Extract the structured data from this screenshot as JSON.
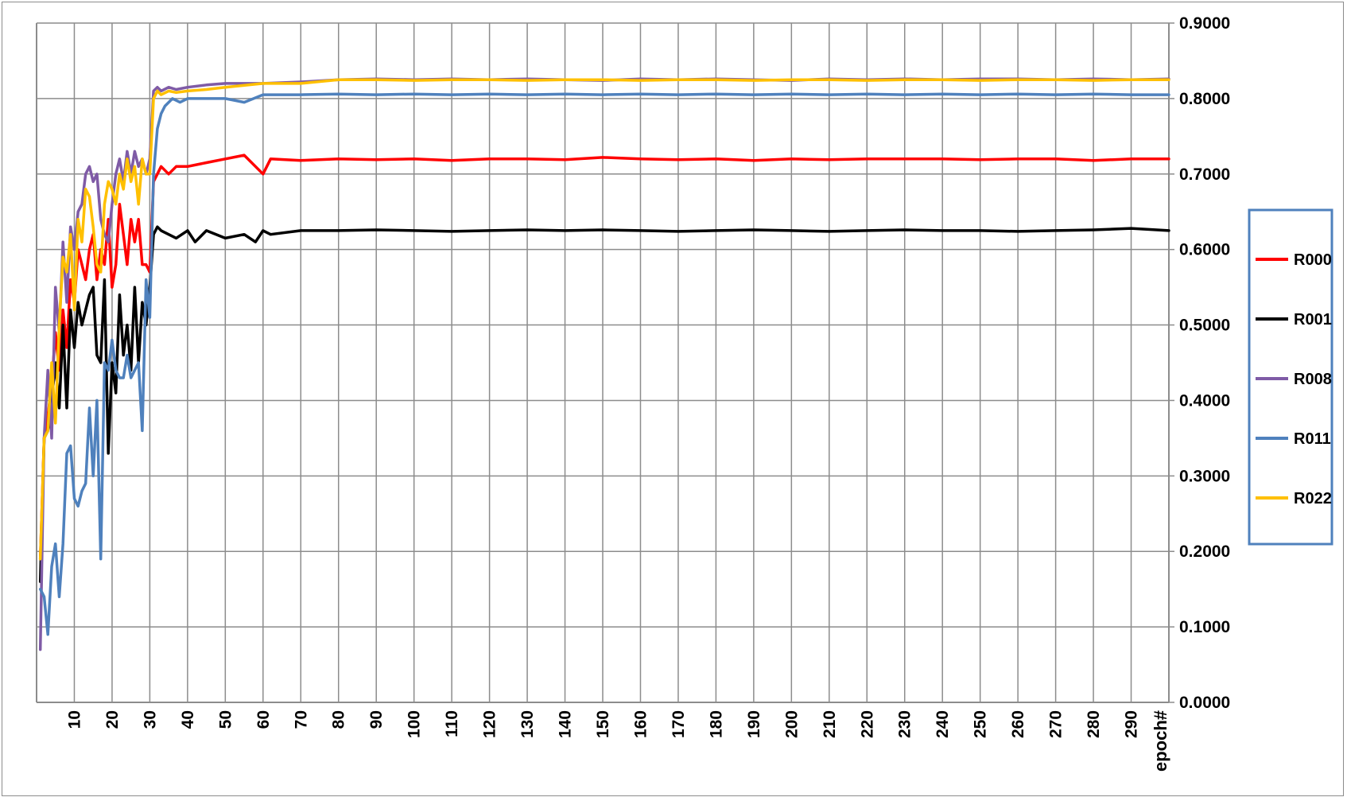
{
  "chart_data": {
    "type": "line",
    "title": "",
    "xlabel": "epoch#",
    "ylabel": "",
    "xlim": [
      0,
      300
    ],
    "ylim": [
      0.0,
      0.9
    ],
    "y_tick_labels": [
      "0.0000",
      "0.1000",
      "0.2000",
      "0.3000",
      "0.4000",
      "0.5000",
      "0.6000",
      "0.7000",
      "0.8000",
      "0.9000"
    ],
    "x_tick_labels": [
      "10",
      "20",
      "30",
      "40",
      "50",
      "60",
      "70",
      "80",
      "90",
      "100",
      "110",
      "120",
      "130",
      "140",
      "150",
      "160",
      "170",
      "180",
      "190",
      "200",
      "210",
      "220",
      "230",
      "240",
      "250",
      "260",
      "270",
      "280",
      "290"
    ],
    "y_axis_position": "right",
    "grid": true,
    "legend_position": "right",
    "series": [
      {
        "name": "R000",
        "color": "#ff0000",
        "x": [
          1,
          2,
          3,
          4,
          5,
          6,
          7,
          8,
          9,
          10,
          11,
          12,
          13,
          14,
          15,
          16,
          17,
          18,
          19,
          20,
          21,
          22,
          23,
          24,
          25,
          26,
          27,
          28,
          29,
          30,
          31,
          32,
          33,
          35,
          37,
          40,
          45,
          50,
          55,
          58,
          60,
          62,
          70,
          80,
          90,
          100,
          110,
          120,
          130,
          140,
          150,
          160,
          170,
          180,
          190,
          200,
          210,
          220,
          230,
          240,
          250,
          260,
          270,
          280,
          290,
          300
        ],
        "y": [
          0.19,
          0.35,
          0.38,
          0.42,
          0.49,
          0.44,
          0.52,
          0.47,
          0.56,
          0.53,
          0.6,
          0.58,
          0.56,
          0.6,
          0.62,
          0.56,
          0.6,
          0.58,
          0.64,
          0.55,
          0.58,
          0.66,
          0.62,
          0.58,
          0.64,
          0.61,
          0.64,
          0.58,
          0.58,
          0.57,
          0.69,
          0.7,
          0.71,
          0.7,
          0.71,
          0.71,
          0.715,
          0.72,
          0.725,
          0.71,
          0.7,
          0.72,
          0.718,
          0.72,
          0.719,
          0.72,
          0.718,
          0.72,
          0.72,
          0.719,
          0.722,
          0.72,
          0.719,
          0.72,
          0.718,
          0.72,
          0.719,
          0.72,
          0.72,
          0.72,
          0.719,
          0.72,
          0.72,
          0.718,
          0.72,
          0.72
        ]
      },
      {
        "name": "R001",
        "color": "#000000",
        "x": [
          1,
          2,
          3,
          4,
          5,
          6,
          7,
          8,
          9,
          10,
          11,
          12,
          13,
          14,
          15,
          16,
          17,
          18,
          19,
          20,
          21,
          22,
          23,
          24,
          25,
          26,
          27,
          28,
          29,
          30,
          31,
          32,
          33,
          35,
          37,
          40,
          42,
          45,
          50,
          55,
          58,
          60,
          62,
          70,
          80,
          90,
          100,
          110,
          120,
          130,
          140,
          150,
          160,
          170,
          180,
          190,
          200,
          210,
          220,
          230,
          240,
          250,
          260,
          270,
          280,
          290,
          300
        ],
        "y": [
          0.16,
          0.35,
          0.36,
          0.4,
          0.45,
          0.39,
          0.5,
          0.39,
          0.52,
          0.47,
          0.53,
          0.5,
          0.52,
          0.54,
          0.55,
          0.46,
          0.45,
          0.56,
          0.33,
          0.45,
          0.41,
          0.54,
          0.46,
          0.5,
          0.44,
          0.55,
          0.45,
          0.53,
          0.5,
          0.55,
          0.62,
          0.63,
          0.625,
          0.62,
          0.615,
          0.625,
          0.61,
          0.625,
          0.615,
          0.62,
          0.61,
          0.625,
          0.62,
          0.625,
          0.625,
          0.626,
          0.625,
          0.624,
          0.625,
          0.626,
          0.625,
          0.626,
          0.625,
          0.624,
          0.625,
          0.626,
          0.625,
          0.624,
          0.625,
          0.626,
          0.625,
          0.625,
          0.624,
          0.625,
          0.626,
          0.628,
          0.625
        ]
      },
      {
        "name": "R008",
        "color": "#7f5ba6",
        "x": [
          1,
          2,
          3,
          4,
          5,
          6,
          7,
          8,
          9,
          10,
          11,
          12,
          13,
          14,
          15,
          16,
          17,
          18,
          19,
          20,
          21,
          22,
          23,
          24,
          25,
          26,
          27,
          28,
          29,
          30,
          31,
          32,
          33,
          35,
          37,
          40,
          45,
          50,
          60,
          70,
          80,
          90,
          100,
          110,
          120,
          130,
          140,
          150,
          160,
          170,
          180,
          190,
          200,
          210,
          220,
          230,
          240,
          250,
          260,
          270,
          280,
          290,
          300
        ],
        "y": [
          0.07,
          0.35,
          0.44,
          0.35,
          0.55,
          0.49,
          0.61,
          0.53,
          0.63,
          0.6,
          0.65,
          0.66,
          0.7,
          0.71,
          0.69,
          0.7,
          0.64,
          0.62,
          0.61,
          0.66,
          0.7,
          0.72,
          0.69,
          0.73,
          0.7,
          0.73,
          0.71,
          0.72,
          0.7,
          0.72,
          0.81,
          0.815,
          0.81,
          0.815,
          0.812,
          0.815,
          0.818,
          0.82,
          0.82,
          0.822,
          0.825,
          0.826,
          0.825,
          0.826,
          0.825,
          0.826,
          0.825,
          0.824,
          0.826,
          0.825,
          0.826,
          0.825,
          0.824,
          0.826,
          0.825,
          0.826,
          0.825,
          0.826,
          0.826,
          0.825,
          0.826,
          0.825,
          0.826
        ]
      },
      {
        "name": "R011",
        "color": "#4f81bd",
        "x": [
          1,
          2,
          3,
          4,
          5,
          6,
          7,
          8,
          9,
          10,
          11,
          12,
          13,
          14,
          15,
          16,
          17,
          18,
          19,
          20,
          21,
          22,
          23,
          24,
          25,
          26,
          27,
          28,
          29,
          30,
          31,
          32,
          33,
          34,
          36,
          38,
          40,
          45,
          50,
          55,
          60,
          70,
          80,
          90,
          100,
          110,
          120,
          130,
          140,
          150,
          160,
          170,
          180,
          190,
          200,
          210,
          220,
          230,
          240,
          250,
          260,
          270,
          280,
          290,
          300
        ],
        "y": [
          0.15,
          0.14,
          0.09,
          0.18,
          0.21,
          0.14,
          0.21,
          0.33,
          0.34,
          0.27,
          0.26,
          0.28,
          0.29,
          0.39,
          0.3,
          0.4,
          0.19,
          0.45,
          0.44,
          0.48,
          0.44,
          0.43,
          0.43,
          0.46,
          0.43,
          0.44,
          0.45,
          0.36,
          0.56,
          0.51,
          0.7,
          0.76,
          0.78,
          0.79,
          0.8,
          0.795,
          0.8,
          0.8,
          0.8,
          0.795,
          0.805,
          0.805,
          0.806,
          0.805,
          0.806,
          0.805,
          0.806,
          0.805,
          0.806,
          0.805,
          0.806,
          0.805,
          0.806,
          0.805,
          0.806,
          0.805,
          0.806,
          0.805,
          0.806,
          0.805,
          0.806,
          0.805,
          0.806,
          0.805,
          0.805
        ]
      },
      {
        "name": "R022",
        "color": "#ffc000",
        "x": [
          1,
          2,
          3,
          4,
          5,
          6,
          7,
          8,
          9,
          10,
          11,
          12,
          13,
          14,
          15,
          16,
          17,
          18,
          19,
          20,
          21,
          22,
          23,
          24,
          25,
          26,
          27,
          28,
          29,
          30,
          31,
          32,
          33,
          35,
          37,
          40,
          45,
          50,
          60,
          70,
          80,
          90,
          100,
          110,
          120,
          130,
          140,
          150,
          160,
          170,
          180,
          190,
          200,
          210,
          220,
          230,
          240,
          250,
          260,
          270,
          280,
          290,
          300
        ],
        "y": [
          0.19,
          0.35,
          0.36,
          0.45,
          0.37,
          0.5,
          0.59,
          0.57,
          0.62,
          0.52,
          0.64,
          0.61,
          0.68,
          0.67,
          0.63,
          0.58,
          0.57,
          0.66,
          0.69,
          0.68,
          0.66,
          0.7,
          0.68,
          0.72,
          0.69,
          0.71,
          0.66,
          0.72,
          0.7,
          0.7,
          0.8,
          0.81,
          0.805,
          0.81,
          0.808,
          0.81,
          0.812,
          0.815,
          0.82,
          0.82,
          0.825,
          0.825,
          0.824,
          0.825,
          0.825,
          0.824,
          0.825,
          0.825,
          0.824,
          0.825,
          0.825,
          0.824,
          0.825,
          0.825,
          0.824,
          0.825,
          0.825,
          0.824,
          0.825,
          0.825,
          0.824,
          0.825,
          0.825
        ]
      }
    ]
  }
}
